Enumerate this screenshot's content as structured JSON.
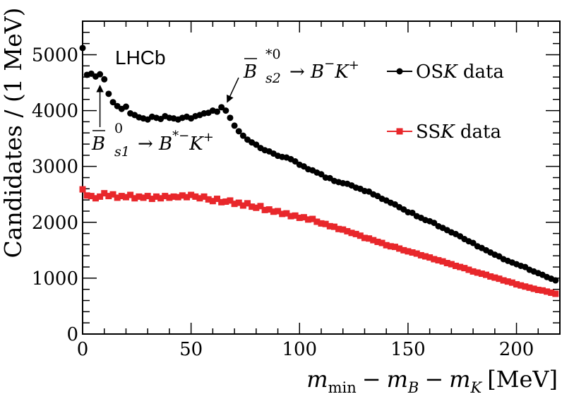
{
  "chart_data": {
    "type": "scatter",
    "experiment_label": "LHCb",
    "xlabel": {
      "main": "m",
      "sub_min": "min",
      "sub_B": "B",
      "sub_K": "K",
      "minus": "−",
      "unit": "[MeV]"
    },
    "ylabel": "Candidates / (1 MeV)",
    "xlim": [
      0,
      220
    ],
    "ylim": [
      0,
      5600
    ],
    "x_ticks": [
      0,
      50,
      100,
      150,
      200
    ],
    "y_ticks": [
      0,
      1000,
      2000,
      3000,
      4000,
      5000
    ],
    "legend": [
      {
        "label_pre": "OS",
        "label_italic": "K",
        "label_post": " data",
        "color": "#000000",
        "marker": "circle"
      },
      {
        "label_pre": "SS",
        "label_italic": "K",
        "label_post": " data",
        "color": "#e8272b",
        "marker": "square"
      }
    ],
    "annotations": [
      {
        "id": "bs1",
        "text_main": "B",
        "superscript": "0",
        "subscript": "s1",
        "decay": "→ B",
        "decay_sup": "*−",
        "decay_tail": "K",
        "decay_tail_sup": "+",
        "arrow_to_x": 8,
        "arrow_to_y": 4550
      },
      {
        "id": "bs2",
        "text_main": "B",
        "superscript": "*0",
        "subscript": "s2",
        "decay": "→ B",
        "decay_sup": "−",
        "decay_tail": "K",
        "decay_tail_sup": "+",
        "arrow_to_x": 66,
        "arrow_to_y": 4100
      }
    ],
    "series": [
      {
        "name": "OSK data",
        "color": "#000000",
        "marker": "circle",
        "x": [
          0,
          2,
          4,
          6,
          8,
          10,
          12,
          14,
          16,
          18,
          20,
          22,
          24,
          26,
          28,
          30,
          32,
          34,
          36,
          38,
          40,
          42,
          44,
          46,
          48,
          50,
          52,
          54,
          56,
          58,
          60,
          62,
          64,
          66,
          68,
          70,
          72,
          74,
          76,
          78,
          80,
          82,
          84,
          86,
          88,
          90,
          92,
          94,
          96,
          98,
          100,
          102,
          104,
          106,
          108,
          110,
          112,
          114,
          116,
          118,
          120,
          122,
          124,
          126,
          128,
          130,
          132,
          134,
          136,
          138,
          140,
          142,
          144,
          146,
          148,
          150,
          152,
          154,
          156,
          158,
          160,
          162,
          164,
          166,
          168,
          170,
          172,
          174,
          176,
          178,
          180,
          182,
          184,
          186,
          188,
          190,
          192,
          194,
          196,
          198,
          200,
          202,
          204,
          206,
          208,
          210,
          212,
          214,
          216,
          218
        ],
        "values": [
          5120,
          4640,
          4660,
          4610,
          4650,
          4560,
          4300,
          4150,
          4080,
          4030,
          4070,
          3950,
          3920,
          3880,
          3860,
          3840,
          3890,
          3870,
          3850,
          3900,
          3870,
          3860,
          3840,
          3870,
          3890,
          3860,
          3900,
          3920,
          3950,
          3960,
          4000,
          3980,
          4060,
          4000,
          3870,
          3730,
          3630,
          3550,
          3480,
          3430,
          3390,
          3330,
          3290,
          3270,
          3230,
          3190,
          3170,
          3160,
          3130,
          3090,
          3030,
          3000,
          2950,
          2930,
          2890,
          2860,
          2800,
          2790,
          2740,
          2720,
          2700,
          2690,
          2660,
          2620,
          2600,
          2560,
          2550,
          2500,
          2470,
          2420,
          2390,
          2350,
          2320,
          2270,
          2230,
          2180,
          2170,
          2110,
          2080,
          2040,
          2020,
          1990,
          1930,
          1900,
          1860,
          1820,
          1790,
          1750,
          1700,
          1660,
          1630,
          1570,
          1540,
          1500,
          1460,
          1420,
          1390,
          1340,
          1310,
          1280,
          1250,
          1220,
          1200,
          1150,
          1120,
          1090,
          1060,
          1020,
          990,
          960
        ]
      },
      {
        "name": "SSK data",
        "color": "#e8272b",
        "marker": "square",
        "x": [
          0,
          2,
          4,
          6,
          8,
          10,
          12,
          14,
          16,
          18,
          20,
          22,
          24,
          26,
          28,
          30,
          32,
          34,
          36,
          38,
          40,
          42,
          44,
          46,
          48,
          50,
          52,
          54,
          56,
          58,
          60,
          62,
          64,
          66,
          68,
          70,
          72,
          74,
          76,
          78,
          80,
          82,
          84,
          86,
          88,
          90,
          92,
          94,
          96,
          98,
          100,
          102,
          104,
          106,
          108,
          110,
          112,
          114,
          116,
          118,
          120,
          122,
          124,
          126,
          128,
          130,
          132,
          134,
          136,
          138,
          140,
          142,
          144,
          146,
          148,
          150,
          152,
          154,
          156,
          158,
          160,
          162,
          164,
          166,
          168,
          170,
          172,
          174,
          176,
          178,
          180,
          182,
          184,
          186,
          188,
          190,
          192,
          194,
          196,
          198,
          200,
          202,
          204,
          206,
          208,
          210,
          212,
          214,
          216,
          218
        ],
        "values": [
          2590,
          2480,
          2470,
          2430,
          2460,
          2520,
          2470,
          2500,
          2440,
          2470,
          2450,
          2490,
          2430,
          2460,
          2440,
          2470,
          2420,
          2460,
          2430,
          2470,
          2440,
          2460,
          2450,
          2480,
          2450,
          2490,
          2460,
          2430,
          2460,
          2410,
          2380,
          2420,
          2360,
          2370,
          2390,
          2330,
          2350,
          2300,
          2340,
          2280,
          2260,
          2290,
          2220,
          2230,
          2190,
          2200,
          2150,
          2160,
          2110,
          2120,
          2080,
          2090,
          2050,
          2060,
          2010,
          1980,
          1970,
          1930,
          1920,
          1880,
          1870,
          1840,
          1810,
          1790,
          1760,
          1720,
          1710,
          1680,
          1650,
          1630,
          1590,
          1570,
          1560,
          1530,
          1500,
          1480,
          1460,
          1440,
          1410,
          1390,
          1370,
          1340,
          1320,
          1300,
          1270,
          1250,
          1220,
          1200,
          1180,
          1150,
          1120,
          1100,
          1080,
          1060,
          1030,
          1010,
          990,
          960,
          940,
          920,
          890,
          870,
          850,
          830,
          810,
          790,
          780,
          760,
          740,
          720
        ]
      }
    ]
  }
}
